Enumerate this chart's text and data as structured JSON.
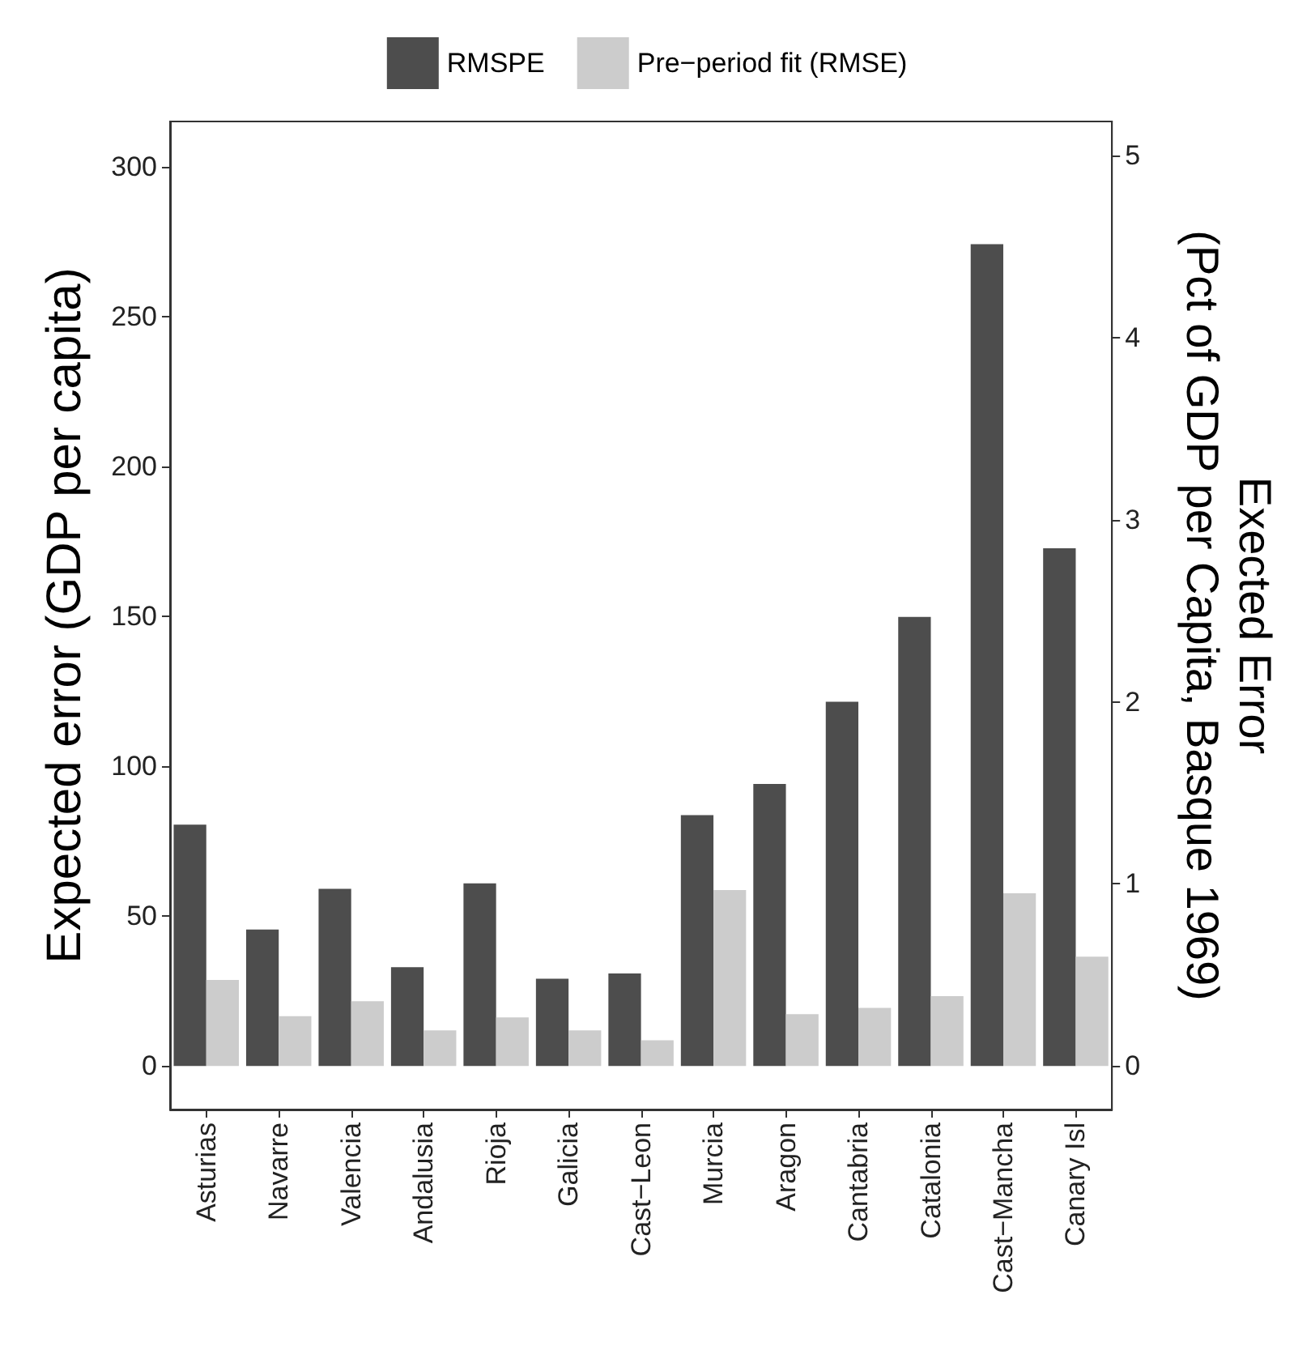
{
  "chart_data": {
    "type": "bar",
    "ylabel": "Expected error (GDP per capita)",
    "y2label": "Exected Error\n(Pct of GDP per Capita, Basque 1969)",
    "categories": [
      "Asturias",
      "Navarre",
      "Valencia",
      "Andalusia",
      "Rioja",
      "Galicia",
      "Cast−Leon",
      "Murcia",
      "Aragon",
      "Cantabria",
      "Catalonia",
      "Cast−Mancha",
      "Canary Isl"
    ],
    "series": [
      {
        "name": "RMSPE",
        "color": "#4d4d4d",
        "values": [
          80.5,
          45.5,
          59.1,
          33.0,
          60.9,
          29.1,
          30.9,
          83.7,
          94.1,
          121.5,
          149.8,
          274.1,
          172.7
        ]
      },
      {
        "name": "Pre−period fit (RMSE)",
        "color": "#cccccc",
        "values": [
          28.7,
          16.6,
          21.6,
          11.9,
          16.2,
          11.9,
          8.6,
          58.7,
          17.3,
          19.4,
          23.3,
          57.6,
          36.5
        ]
      }
    ],
    "ylim": [
      -14.5,
      315
    ],
    "yticks": [
      0,
      50,
      100,
      150,
      200,
      250,
      300
    ],
    "y2lim": [
      -0.238,
      5.185
    ],
    "y2ticks": [
      0,
      1,
      2,
      3,
      4,
      5
    ],
    "grid": false,
    "legend": "top"
  }
}
